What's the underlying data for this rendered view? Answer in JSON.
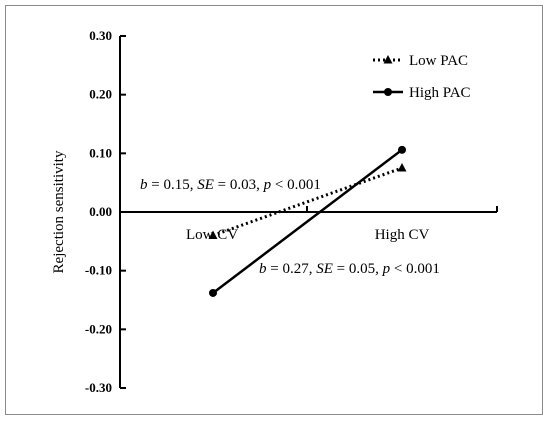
{
  "chart_data": {
    "type": "line",
    "title": "",
    "xlabel": "",
    "ylabel": "Rejection sensitivity",
    "categories": [
      "Low CV",
      "High CV"
    ],
    "yticks": [
      "0.30",
      "0.20",
      "0.10",
      "0.00",
      "-0.10",
      "-0.20",
      "-0.30"
    ],
    "ylim": [
      -0.3,
      0.3
    ],
    "grid": false,
    "legend_position": "top-right",
    "series": [
      {
        "name": "Low PAC",
        "values": [
          -0.04,
          0.075
        ],
        "line_style": "dotted",
        "marker": "triangle",
        "color": "#000000"
      },
      {
        "name": "High PAC",
        "values": [
          -0.138,
          0.106
        ],
        "line_style": "solid",
        "marker": "circle",
        "color": "#000000"
      }
    ],
    "annotations": [
      {
        "series": "Low PAC",
        "parts": [
          {
            "text": "b",
            "italic": true
          },
          {
            "text": " = 0.15, ",
            "italic": false
          },
          {
            "text": "SE",
            "italic": true
          },
          {
            "text": " = 0.03, ",
            "italic": false
          },
          {
            "text": "p",
            "italic": true
          },
          {
            "text": " < 0.001",
            "italic": false
          }
        ]
      },
      {
        "series": "High PAC",
        "parts": [
          {
            "text": "b",
            "italic": true
          },
          {
            "text": " = 0.27, ",
            "italic": false
          },
          {
            "text": "SE",
            "italic": true
          },
          {
            "text": " = 0.05, ",
            "italic": false
          },
          {
            "text": "p",
            "italic": true
          },
          {
            "text": " < 0.001",
            "italic": false
          }
        ]
      }
    ]
  }
}
